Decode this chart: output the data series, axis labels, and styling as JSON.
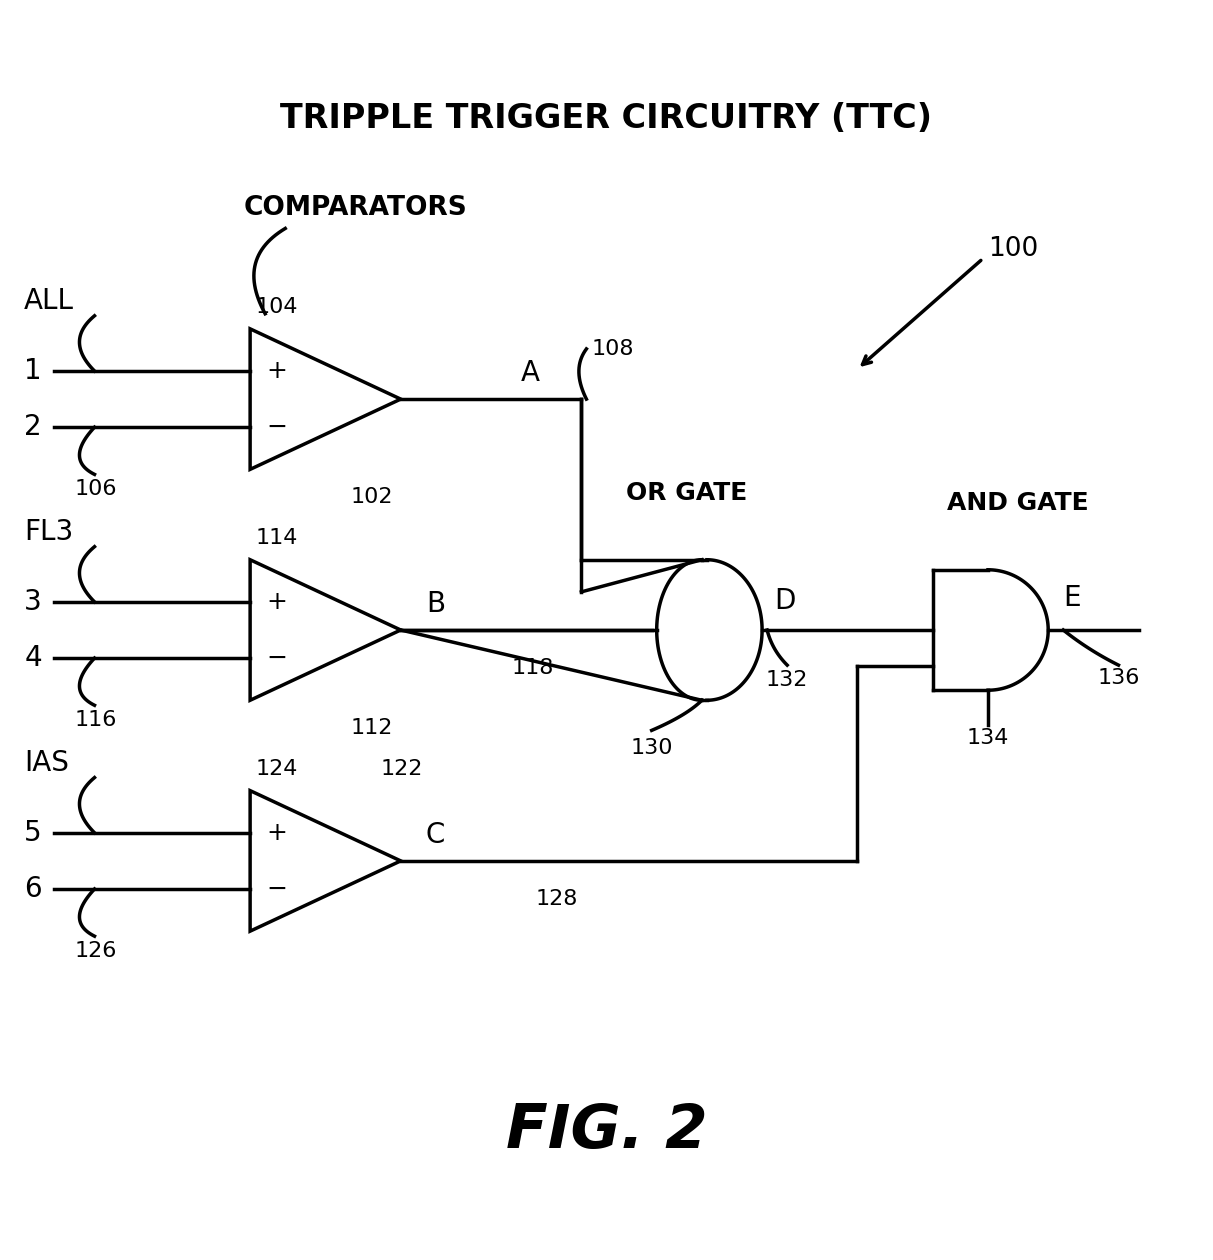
{
  "title": "TRIPPLE TRIGGER CIRCUITRY (TTC)",
  "fig_label": "FIG. 2",
  "background_color": "#ffffff",
  "line_color": "#000000",
  "title_fontsize": 24,
  "label_fontsize": 18,
  "small_fontsize": 16,
  "fig_label_fontsize": 44,
  "comparators_label": "COMPARATORS",
  "or_gate_label": "OR GATE",
  "and_gate_label": "AND GATE"
}
